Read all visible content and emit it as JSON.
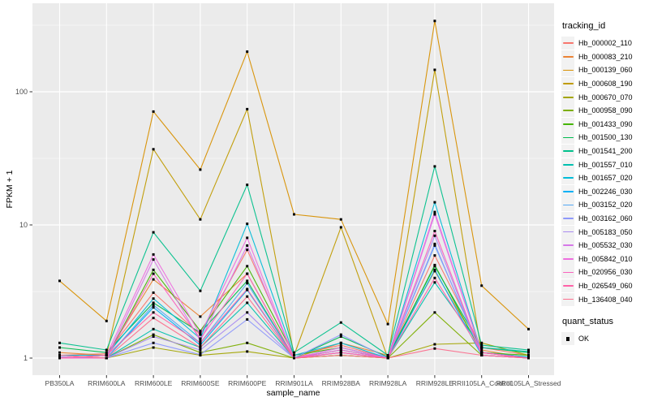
{
  "figure": {
    "panel_bg": "#EBEBEB",
    "grid_color": "#FFFFFF",
    "axis_text_color": "#4D4D4D",
    "axis_title_color": "#000000",
    "marker_color": "#000000",
    "y_axis_title": "FPKM + 1",
    "x_axis_title": "sample_name",
    "legend_title": "tracking_id",
    "quant_legend_title": "quant_status",
    "quant_legend_item": "OK",
    "quant_marker": "black-square-icon"
  },
  "chart_data": {
    "type": "line",
    "title": "",
    "xlabel": "sample_name",
    "ylabel": "FPKM + 1",
    "y_scale": "log10",
    "y_ticks": [
      1,
      10,
      100
    ],
    "y_minor_ticks": [
      3.162,
      31.62,
      316.2
    ],
    "ylim": [
      0.75,
      425
    ],
    "grid": true,
    "legend_position": "right",
    "point_marker": "filled-black-square",
    "x": [
      "PB350LA",
      "RRIM600LA",
      "RRIM600LE",
      "RRIM600SE",
      "RRIM600PE",
      "RRIM901LA",
      "RRIM928BA",
      "RRIM928LA",
      "RRIM928LE",
      "RRII105LA_Control",
      "RRII105LA_Stressed"
    ],
    "series": [
      {
        "name": "Hb_000002_110",
        "color": "#F8766D",
        "values": [
          1.05,
          1.08,
          3.1,
          1.5,
          6.5,
          1.05,
          1.25,
          1.0,
          5.9,
          1.2,
          1.05
        ]
      },
      {
        "name": "Hb_000083_210",
        "color": "#EB8335",
        "values": [
          1.1,
          1.05,
          3.9,
          2.05,
          4.3,
          1.0,
          1.3,
          1.05,
          4.5,
          1.15,
          1.0
        ]
      },
      {
        "name": "Hb_000139_060",
        "color": "#D89000",
        "values": [
          3.8,
          1.9,
          71,
          26,
          200,
          12,
          11,
          1.8,
          340,
          3.5,
          1.65
        ]
      },
      {
        "name": "Hb_000608_190",
        "color": "#C09B00",
        "values": [
          1.0,
          1.05,
          37,
          11,
          74,
          1.05,
          9.6,
          1.0,
          146,
          1.1,
          1.0
        ]
      },
      {
        "name": "Hb_000670_070",
        "color": "#A3A500",
        "values": [
          1.0,
          1.0,
          1.2,
          1.05,
          1.12,
          1.0,
          1.05,
          1.0,
          1.27,
          1.3,
          1.05
        ]
      },
      {
        "name": "Hb_000958_090",
        "color": "#7CAE00",
        "values": [
          1.0,
          1.0,
          1.5,
          1.1,
          1.3,
          1.0,
          1.05,
          1.0,
          2.2,
          1.05,
          1.0
        ]
      },
      {
        "name": "Hb_001433_090",
        "color": "#45B500",
        "values": [
          1.05,
          1.0,
          4.6,
          1.6,
          4.9,
          1.05,
          1.2,
          1.0,
          5.0,
          1.1,
          1.05
        ]
      },
      {
        "name": "Hb_001500_130",
        "color": "#00BB4E",
        "values": [
          1.2,
          1.1,
          2.6,
          1.55,
          3.8,
          1.0,
          1.45,
          1.02,
          4.9,
          1.2,
          1.1
        ]
      },
      {
        "name": "Hb_001541_200",
        "color": "#00C08B",
        "values": [
          1.3,
          1.15,
          8.8,
          3.2,
          20,
          1.1,
          1.85,
          1.05,
          27.5,
          1.25,
          1.15
        ]
      },
      {
        "name": "Hb_001557_010",
        "color": "#00C0AF",
        "values": [
          1.0,
          1.0,
          1.65,
          1.2,
          2.6,
          1.0,
          1.1,
          1.0,
          3.7,
          1.2,
          1.12
        ]
      },
      {
        "name": "Hb_001657_020",
        "color": "#00BCD8",
        "values": [
          1.05,
          1.05,
          2.8,
          1.4,
          10.2,
          1.05,
          1.3,
          1.0,
          14.8,
          1.1,
          1.02
        ]
      },
      {
        "name": "Hb_002246_030",
        "color": "#00B0F6",
        "values": [
          1.0,
          1.0,
          2.4,
          1.25,
          3.25,
          1.0,
          1.15,
          1.0,
          4.6,
          1.05,
          1.0
        ]
      },
      {
        "name": "Hb_003152_020",
        "color": "#53A8F5",
        "values": [
          1.0,
          1.0,
          2.5,
          1.3,
          3.65,
          1.0,
          1.2,
          1.0,
          7.0,
          1.1,
          1.0
        ]
      },
      {
        "name": "Hb_003162_060",
        "color": "#8F99FB",
        "values": [
          1.05,
          1.0,
          1.3,
          1.06,
          1.95,
          1.0,
          1.5,
          1.0,
          7.2,
          1.05,
          1.0
        ]
      },
      {
        "name": "Hb_005183_050",
        "color": "#A98CF0",
        "values": [
          1.02,
          1.0,
          1.45,
          1.15,
          2.2,
          1.0,
          1.1,
          1.0,
          8.3,
          1.05,
          1.0
        ]
      },
      {
        "name": "Hb_005532_030",
        "color": "#D678E8",
        "values": [
          1.0,
          1.0,
          5.5,
          1.35,
          7.0,
          1.0,
          1.1,
          1.0,
          12.0,
          1.1,
          1.0
        ]
      },
      {
        "name": "Hb_005842_010",
        "color": "#EE6FDE",
        "values": [
          1.0,
          1.05,
          6.0,
          1.5,
          8.0,
          1.0,
          1.2,
          1.0,
          12.5,
          1.1,
          1.0
        ]
      },
      {
        "name": "Hb_020956_030",
        "color": "#FA62BE",
        "values": [
          1.0,
          1.0,
          4.3,
          1.4,
          4.3,
          1.0,
          1.15,
          1.0,
          9.0,
          1.05,
          1.0
        ]
      },
      {
        "name": "Hb_026549_060",
        "color": "#FF62A8",
        "values": [
          1.0,
          1.05,
          2.2,
          1.3,
          3.3,
          1.0,
          1.1,
          1.0,
          4.0,
          1.1,
          1.0
        ]
      },
      {
        "name": "Hb_136408_040",
        "color": "#FC6F8E",
        "values": [
          1.05,
          1.0,
          2.0,
          1.2,
          2.9,
          1.0,
          1.05,
          1.0,
          1.18,
          1.05,
          1.0
        ]
      }
    ]
  }
}
